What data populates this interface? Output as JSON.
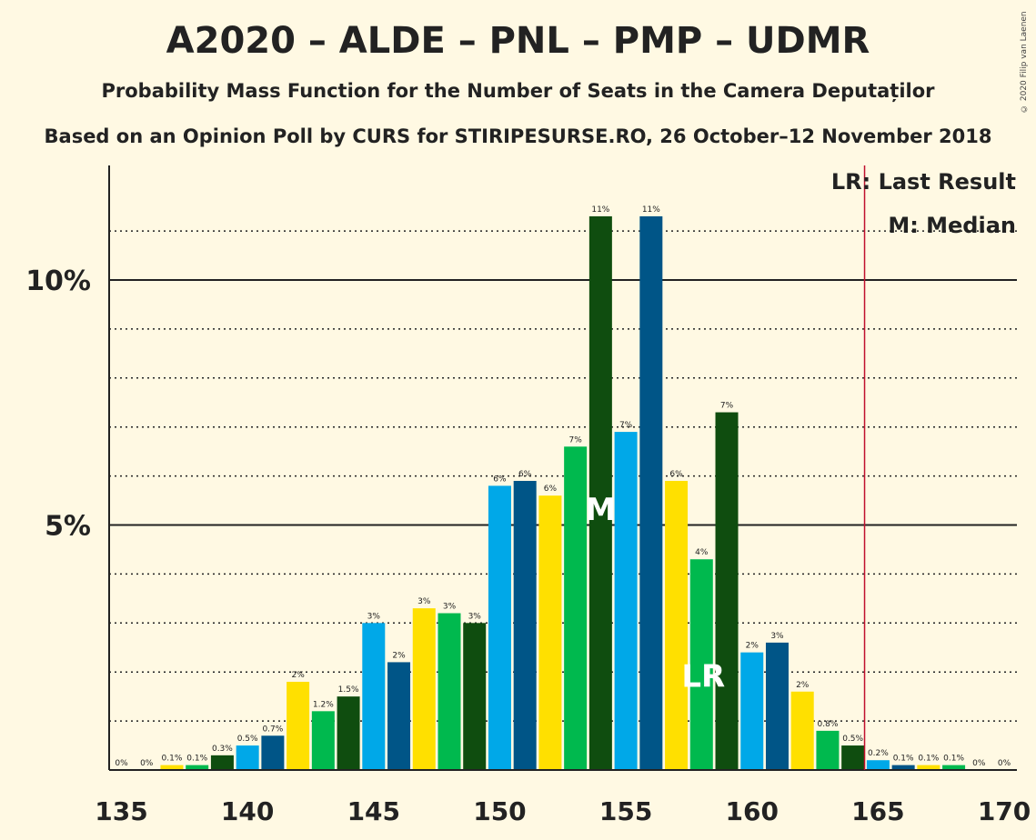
{
  "title": "A2020 – ALDE – PNL – PMP – UDMR",
  "subtitle": "Probability Mass Function for the Number of Seats in the Camera Deputaților",
  "source": "Based on an Opinion Poll by CURS for STIRIPESURSE.RO, 26 October–12 November 2018",
  "copyright": "© 2020 Filip van Laenen",
  "colors": {
    "background": "#FFF9E3",
    "palette": [
      "#00A8E8",
      "#005587",
      "#FFE000",
      "#00B94E",
      "#0F4D0F"
    ],
    "last_result_line": "#C0102E"
  },
  "chart_data": {
    "type": "bar",
    "x": [
      135,
      136,
      137,
      138,
      139,
      140,
      141,
      142,
      143,
      144,
      145,
      146,
      147,
      148,
      149,
      150,
      151,
      152,
      153,
      154,
      155,
      156,
      157,
      158,
      159,
      160,
      161,
      162,
      163,
      164,
      165,
      166,
      167,
      168,
      169,
      170
    ],
    "values": [
      0,
      0,
      0.1,
      0.1,
      0.3,
      0.5,
      0.7,
      1.8,
      1.2,
      1.5,
      3.0,
      2.2,
      3.3,
      3.2,
      3.0,
      5.8,
      5.9,
      5.6,
      6.6,
      11.3,
      6.9,
      11.3,
      5.9,
      4.3,
      7.3,
      2.4,
      2.6,
      1.6,
      0.8,
      0.5,
      0.2,
      0.1,
      0.1,
      0.1,
      0,
      0
    ],
    "data_labels": [
      "0%",
      "0%",
      "0.1%",
      "0.1%",
      "0.3%",
      "0.5%",
      "0.7%",
      "2%",
      "1.2%",
      "1.5%",
      "3%",
      "2%",
      "3%",
      "3%",
      "3%",
      "6%",
      "6%",
      "6%",
      "7%",
      "11%",
      "7%",
      "11%",
      "6%",
      "4%",
      "7%",
      "2%",
      "3%",
      "2%",
      "0.8%",
      "0.5%",
      "0.2%",
      "0.1%",
      "0.1%",
      "0.1%",
      "0%",
      "0%"
    ],
    "x_ticks": [
      135,
      140,
      145,
      150,
      155,
      160,
      165,
      170
    ],
    "y_ticks": [
      {
        "value": 5,
        "label": "5%"
      },
      {
        "value": 10,
        "label": "10%"
      }
    ],
    "y_minor_gridlines": [
      1,
      2,
      3,
      4,
      6,
      7,
      8,
      9,
      11
    ],
    "xlim": [
      135,
      170
    ],
    "ylim": [
      0,
      12.3
    ],
    "median": 154,
    "median_marker": "M",
    "last_result": 165,
    "last_result_marker_position": 158,
    "last_result_marker": "LR",
    "legend": [
      "LR: Last Result",
      "M: Median"
    ],
    "legend_position": "top-right"
  }
}
